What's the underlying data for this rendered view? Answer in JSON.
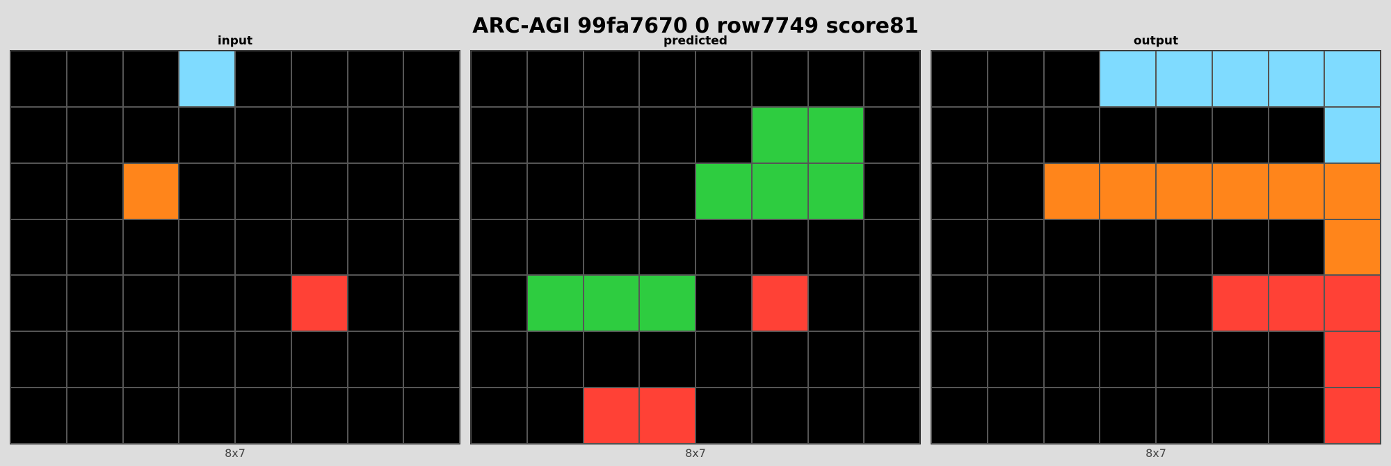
{
  "title": "ARC-AGI 99fa7670 0 row7749 score81",
  "palette": {
    "0": "#000000",
    "2": "#ff4136",
    "3": "#2ecc40",
    "7": "#ff851b",
    "8": "#7fdbff"
  },
  "panels": [
    {
      "label": "input",
      "dims": "8x7",
      "grid": [
        [
          0,
          0,
          0,
          8,
          0,
          0,
          0,
          0
        ],
        [
          0,
          0,
          0,
          0,
          0,
          0,
          0,
          0
        ],
        [
          0,
          0,
          7,
          0,
          0,
          0,
          0,
          0
        ],
        [
          0,
          0,
          0,
          0,
          0,
          0,
          0,
          0
        ],
        [
          0,
          0,
          0,
          0,
          0,
          2,
          0,
          0
        ],
        [
          0,
          0,
          0,
          0,
          0,
          0,
          0,
          0
        ],
        [
          0,
          0,
          0,
          0,
          0,
          0,
          0,
          0
        ]
      ]
    },
    {
      "label": "predicted",
      "dims": "8x7",
      "grid": [
        [
          0,
          0,
          0,
          0,
          0,
          0,
          0,
          0
        ],
        [
          0,
          0,
          0,
          0,
          0,
          3,
          3,
          0
        ],
        [
          0,
          0,
          0,
          0,
          3,
          3,
          3,
          0
        ],
        [
          0,
          0,
          0,
          0,
          0,
          0,
          0,
          0
        ],
        [
          0,
          3,
          3,
          3,
          0,
          2,
          0,
          0
        ],
        [
          0,
          0,
          0,
          0,
          0,
          0,
          0,
          0
        ],
        [
          0,
          0,
          2,
          2,
          0,
          0,
          0,
          0
        ]
      ]
    },
    {
      "label": "output",
      "dims": "8x7",
      "grid": [
        [
          0,
          0,
          0,
          8,
          8,
          8,
          8,
          8
        ],
        [
          0,
          0,
          0,
          0,
          0,
          0,
          0,
          8
        ],
        [
          0,
          0,
          7,
          7,
          7,
          7,
          7,
          7
        ],
        [
          0,
          0,
          0,
          0,
          0,
          0,
          0,
          7
        ],
        [
          0,
          0,
          0,
          0,
          0,
          2,
          2,
          2
        ],
        [
          0,
          0,
          0,
          0,
          0,
          0,
          0,
          2
        ],
        [
          0,
          0,
          0,
          0,
          0,
          0,
          0,
          2
        ]
      ]
    }
  ]
}
